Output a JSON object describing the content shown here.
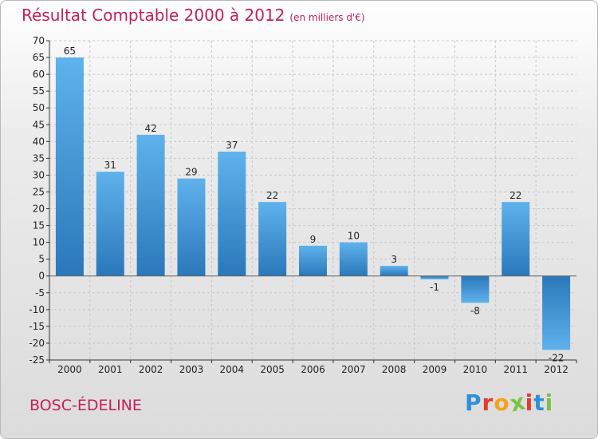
{
  "chart_data": {
    "type": "bar",
    "title": "Résultat Comptable 2000 à 2012",
    "subtitle": "(en milliers d'€)",
    "categories": [
      "2000",
      "2001",
      "2002",
      "2003",
      "2004",
      "2005",
      "2006",
      "2007",
      "2008",
      "2009",
      "2010",
      "2011",
      "2012"
    ],
    "values": [
      65,
      31,
      42,
      29,
      37,
      22,
      9,
      10,
      3,
      -1,
      -8,
      22,
      -22
    ],
    "ylim": [
      -25,
      70
    ],
    "yticks": [
      -25,
      -20,
      -15,
      -10,
      -5,
      0,
      5,
      10,
      15,
      20,
      25,
      30,
      35,
      40,
      45,
      50,
      55,
      60,
      65,
      70
    ],
    "xlabel": "",
    "ylabel": "",
    "grid": true,
    "bar_color": "#3a8fd6"
  },
  "footer": {
    "commune": "BOSC-ÉDELINE",
    "logo_letters": [
      "P",
      "r",
      "o",
      "x",
      "i",
      "t",
      "i"
    ],
    "logo_colors": [
      "#2f8fd8",
      "#e8392c",
      "#f4a21a",
      "#7cc242",
      "#e8392c",
      "#2f8fd8",
      "#7cc242"
    ]
  }
}
